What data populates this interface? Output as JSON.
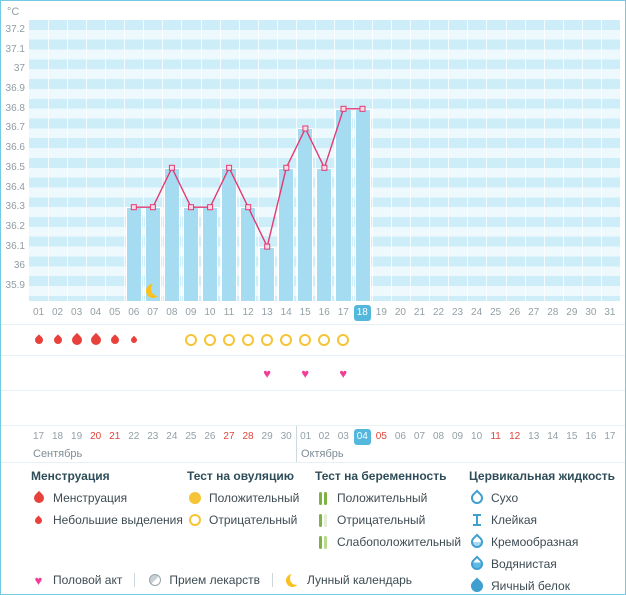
{
  "chart_data": {
    "type": "bar+line",
    "title": "",
    "unit": "°C",
    "ylim": [
      35.9,
      37.2
    ],
    "ytick_step": 0.1,
    "y_ticks": [
      "37.2",
      "37.1",
      "37",
      "36.9",
      "36.8",
      "36.7",
      "36.6",
      "36.5",
      "36.4",
      "36.3",
      "36.2",
      "36.1",
      "36",
      "35.9"
    ],
    "x_days": [
      "01",
      "02",
      "03",
      "04",
      "05",
      "06",
      "07",
      "08",
      "09",
      "10",
      "11",
      "12",
      "13",
      "14",
      "15",
      "16",
      "17",
      "18",
      "19",
      "20",
      "21",
      "22",
      "23",
      "24",
      "25",
      "26",
      "27",
      "28",
      "29",
      "30",
      "31"
    ],
    "points": [
      {
        "day": 6,
        "temp": 36.3
      },
      {
        "day": 7,
        "temp": 36.3
      },
      {
        "day": 8,
        "temp": 36.5
      },
      {
        "day": 9,
        "temp": 36.3
      },
      {
        "day": 10,
        "temp": 36.3
      },
      {
        "day": 11,
        "temp": 36.5
      },
      {
        "day": 12,
        "temp": 36.3
      },
      {
        "day": 13,
        "temp": 36.1
      },
      {
        "day": 14,
        "temp": 36.5
      },
      {
        "day": 15,
        "temp": 36.7
      },
      {
        "day": 16,
        "temp": 36.5
      },
      {
        "day": 17,
        "temp": 36.8
      },
      {
        "day": 18,
        "temp": 36.8
      }
    ],
    "highlight_day": 18,
    "moon_day": 7,
    "grid": "horizontal-stripes",
    "legend_position": "bottom"
  },
  "marker_rows": {
    "menstruation": [
      {
        "day": 1,
        "size": "medium"
      },
      {
        "day": 2,
        "size": "medium"
      },
      {
        "day": 3,
        "size": "large"
      },
      {
        "day": 4,
        "size": "large"
      },
      {
        "day": 5,
        "size": "medium"
      },
      {
        "day": 6,
        "size": "small"
      }
    ],
    "ovulation_tests": [
      {
        "day": 9,
        "result": "negative"
      },
      {
        "day": 10,
        "result": "negative"
      },
      {
        "day": 11,
        "result": "negative"
      },
      {
        "day": 12,
        "result": "negative"
      },
      {
        "day": 13,
        "result": "negative"
      },
      {
        "day": 14,
        "result": "negative"
      },
      {
        "day": 15,
        "result": "negative"
      },
      {
        "day": 16,
        "result": "negative"
      },
      {
        "day": 17,
        "result": "negative"
      }
    ],
    "intercourse_days": [
      13,
      15,
      17
    ]
  },
  "calendar": {
    "days": [
      "17",
      "18",
      "19",
      "20",
      "21",
      "22",
      "23",
      "24",
      "25",
      "26",
      "27",
      "28",
      "29",
      "30",
      "01",
      "02",
      "03",
      "04",
      "05",
      "06",
      "07",
      "08",
      "09",
      "10",
      "11",
      "12",
      "13",
      "14",
      "15",
      "16",
      "17"
    ],
    "weekend_indices": [
      3,
      4,
      10,
      11,
      18,
      24,
      25
    ],
    "today_index": 17,
    "month_split_index": 14,
    "month_left": "Сентябрь",
    "month_right": "Октябрь"
  },
  "legend": {
    "sections": [
      {
        "key": "menstruation",
        "title": "Менструация",
        "items": [
          {
            "icon": "drop-large",
            "label": "Менструация"
          },
          {
            "icon": "drop-small",
            "label": "Небольшие выделения"
          }
        ]
      },
      {
        "key": "ovulation",
        "title": "Тест на овуляцию",
        "items": [
          {
            "icon": "circle-filled",
            "label": "Положительный"
          },
          {
            "icon": "circle-outline",
            "label": "Отрицательный"
          }
        ]
      },
      {
        "key": "pregnancy",
        "title": "Тест на беременность",
        "items": [
          {
            "icon": "test-positive",
            "label": "Положительный"
          },
          {
            "icon": "test-negative",
            "label": "Отрицательный"
          },
          {
            "icon": "test-weak",
            "label": "Слабоположительный"
          }
        ]
      },
      {
        "key": "cervical",
        "title": "Цервикальная жидкость",
        "items": [
          {
            "icon": "drop-outline",
            "label": "Сухо"
          },
          {
            "icon": "sticky",
            "label": "Клейкая"
          },
          {
            "icon": "drop-cream",
            "label": "Кремообразная"
          },
          {
            "icon": "drop-watery",
            "label": "Водянистая"
          },
          {
            "icon": "drop-filled",
            "label": "Яичный белок"
          }
        ]
      }
    ],
    "extras": [
      {
        "icon": "heart",
        "label": "Половой акт"
      },
      {
        "icon": "pill",
        "label": "Прием лекарств"
      },
      {
        "icon": "moon",
        "label": "Лунный календарь"
      }
    ]
  },
  "colors": {
    "border": "#76c9e3",
    "stripe_light": "#cdeef9",
    "stripe_lighter": "#eef9fe",
    "bar_fill": "#a5dcf2",
    "line_pink": "#e23a72",
    "highlight_blue": "#54b7dc",
    "weekend_red": "#e0453c",
    "menstruation_red": "#e8413c",
    "ovulation_yellow": "#f5c437",
    "heart_pink": "#f23d96",
    "pregnancy_green": "#7cb342",
    "fluid_blue": "#3e9fd0",
    "moon_yellow": "#fbc21f",
    "axis_text": "#8f9ca3",
    "legend_header": "#2e4d59",
    "legend_text": "#3d4b52"
  }
}
